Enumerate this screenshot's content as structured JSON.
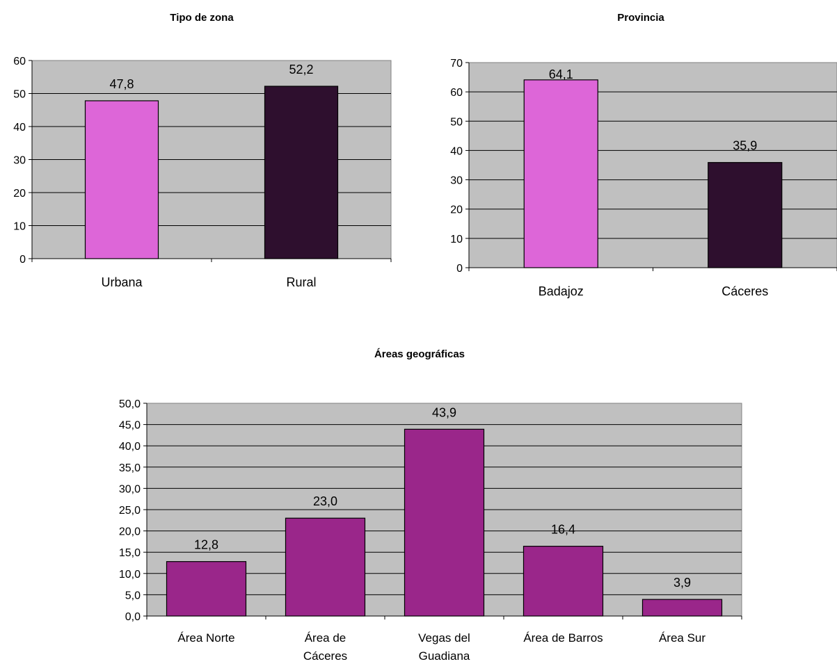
{
  "chart_data": [
    {
      "type": "bar",
      "title": "Tipo de zona",
      "categories": [
        "Urbana",
        "Rural"
      ],
      "values": [
        47.8,
        52.2
      ],
      "value_labels": [
        "47,8",
        "52,2"
      ],
      "colors": [
        "#dd66d8",
        "#2e0f2e"
      ],
      "ylim": [
        0,
        60
      ],
      "yticks": [
        "0",
        "10",
        "20",
        "30",
        "40",
        "50",
        "60"
      ],
      "grid": true,
      "plot_background": "#c0c0c0"
    },
    {
      "type": "bar",
      "title": "Provincia",
      "categories": [
        "Badajoz",
        "Cáceres"
      ],
      "values": [
        64.1,
        35.9
      ],
      "value_labels": [
        "64,1",
        "35,9"
      ],
      "colors": [
        "#dd66d8",
        "#2e0f2e"
      ],
      "ylim": [
        0,
        70
      ],
      "yticks": [
        "0",
        "10",
        "20",
        "30",
        "40",
        "50",
        "60",
        "70"
      ],
      "grid": true,
      "plot_background": "#c0c0c0"
    },
    {
      "type": "bar",
      "title": "Áreas geográficas",
      "categories": [
        "Área Norte",
        "Área de Cáceres",
        "Vegas del Guadiana",
        "Área de Barros",
        "Área Sur"
      ],
      "category_lines": [
        [
          "Área Norte"
        ],
        [
          "Área de",
          "Cáceres"
        ],
        [
          "Vegas del",
          "Guadiana"
        ],
        [
          "Área de Barros"
        ],
        [
          "Área Sur"
        ]
      ],
      "values": [
        12.8,
        23.0,
        43.9,
        16.4,
        3.9
      ],
      "value_labels": [
        "12,8",
        "23,0",
        "43,9",
        "16,4",
        "3,9"
      ],
      "colors": [
        "#9a268a"
      ],
      "ylim": [
        0,
        50
      ],
      "yticks": [
        "0,0",
        "5,0",
        "10,0",
        "15,0",
        "20,0",
        "25,0",
        "30,0",
        "35,0",
        "40,0",
        "45,0",
        "50,0"
      ],
      "grid": true,
      "plot_background": "#c0c0c0"
    }
  ]
}
